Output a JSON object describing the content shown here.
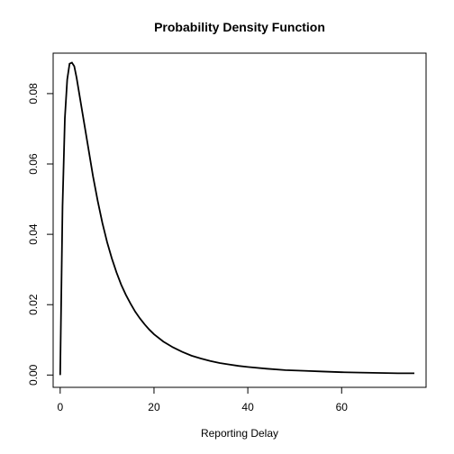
{
  "chart_data": {
    "type": "line",
    "title": "Probability Density Function",
    "xlabel": "Reporting Delay",
    "ylabel": "",
    "xlim": [
      -1.5,
      78
    ],
    "ylim": [
      -0.0035,
      0.0915
    ],
    "x_ticks": [
      0,
      20,
      40,
      60
    ],
    "x_tick_labels": [
      "0",
      "20",
      "40",
      "60"
    ],
    "y_ticks": [
      0,
      0.02,
      0.04,
      0.06,
      0.08
    ],
    "y_tick_labels": [
      "0.00",
      "0.02",
      "0.04",
      "0.06",
      "0.08"
    ],
    "grid": false,
    "legend": "none",
    "line_color": "#000000",
    "series": [
      {
        "x": [
          0,
          0.5,
          1,
          1.5,
          2,
          2.5,
          3,
          3.5,
          4,
          5,
          6,
          7,
          8,
          9,
          10,
          11,
          12,
          13,
          14,
          15,
          16,
          17,
          18,
          19,
          20,
          22,
          24,
          26,
          28,
          30,
          32,
          34,
          36,
          38,
          40,
          44,
          48,
          52,
          56,
          60,
          64,
          68,
          72,
          75.5
        ],
        "y": [
          0.0,
          0.048,
          0.073,
          0.084,
          0.0885,
          0.0888,
          0.0878,
          0.0845,
          0.0805,
          0.0725,
          0.0645,
          0.0565,
          0.0495,
          0.0432,
          0.0378,
          0.0332,
          0.0292,
          0.0257,
          0.0228,
          0.0203,
          0.018,
          0.0161,
          0.0144,
          0.0129,
          0.0116,
          0.0095,
          0.0079,
          0.0066,
          0.0055,
          0.0047,
          0.004,
          0.0034,
          0.003,
          0.0026,
          0.0023,
          0.0018,
          0.0014,
          0.0012,
          0.001,
          0.0008,
          0.0007,
          0.0006,
          0.0005,
          0.0005
        ]
      }
    ]
  }
}
